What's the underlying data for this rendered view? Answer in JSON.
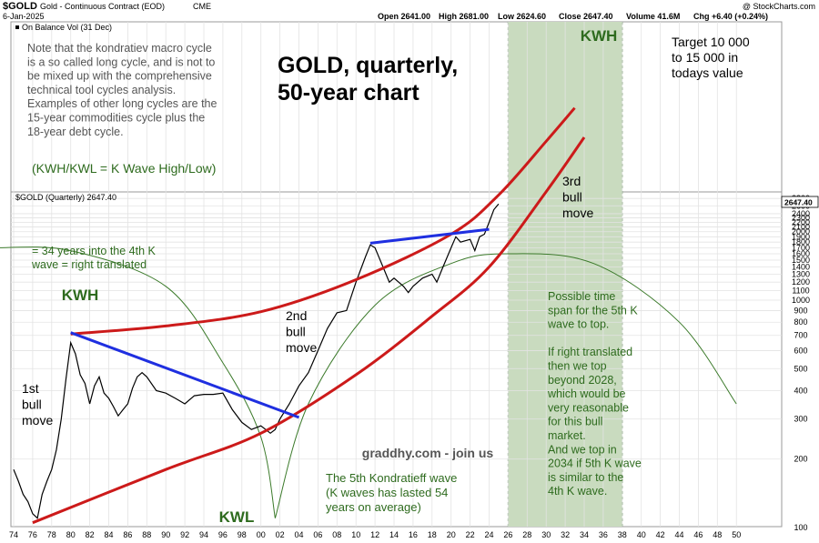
{
  "header": {
    "symbol": "$GOLD",
    "description": "Gold - Continuous Contract (EOD)",
    "exchange": "CME",
    "date": "6-Jan-2025",
    "open": "Open 2641.00",
    "high": "High 2681.00",
    "low": "Low 2624.60",
    "close": "Close 2647.40",
    "volume": "Volume 41.6M",
    "chg": "Chg +6.40 (+0.24%)",
    "watermark": "@ StockCharts.com",
    "indicator_label": "On Balance Vol (31 Dec)",
    "price_label": "$GOLD (Quarterly) 2647.40",
    "last_price_tag": "2647.40"
  },
  "annotations": {
    "note": [
      "Note that the kondratiev macro cycle",
      "is a so called long cycle, and is not to",
      "be mixed up with the comprehensive",
      "technical tool cycles analysis.",
      "Examples of other long cycles are the",
      "15-year commodities cycle plus the",
      "18-year debt cycle."
    ],
    "title": [
      "GOLD, quarterly,",
      "50-year chart"
    ],
    "target": [
      "Target 10 000",
      "to 15 000 in",
      "todays value"
    ],
    "legend_kwh": "(KWH/KWL = K Wave High/Low)",
    "kwh_top": "KWH",
    "kwh_left": "KWH",
    "kwl": "KWL",
    "years_into": [
      "= 34 years into the 4th K",
      "wave = right translated"
    ],
    "bull1": [
      "1st",
      "bull",
      "move"
    ],
    "bull2": [
      "2nd",
      "bull",
      "move"
    ],
    "bull3": [
      "3rd",
      "bull",
      "move"
    ],
    "time_span": [
      "Possible time",
      "span for the 5th K",
      "wave to top.",
      "",
      "If right translated",
      "then we top",
      "beyond 2028,",
      "which would be",
      "very reasonable",
      "for this bull",
      "market.",
      "And we top in",
      "2034 if 5th K wave",
      "is similar to the",
      "4th K wave."
    ],
    "graddhy": "graddhy.com - join us",
    "fifth_wave": [
      "The 5th Kondratieff wave",
      "(K waves has lasted 54",
      "years on average)"
    ]
  },
  "colors": {
    "curve_red": "#cc1a1a",
    "trendline_blue": "#1f2fe0",
    "cycle_green": "#3b7a2a",
    "zone_fill": "#c9dbbf",
    "text_green": "#2e6b1e",
    "price": "#000000"
  },
  "chart_data": {
    "type": "line",
    "title": "GOLD, quarterly, 50-year chart",
    "scale": "log",
    "ylim": [
      100,
      2800
    ],
    "xlim": [
      "1974",
      "2051"
    ],
    "x_tick_labels": [
      "74",
      "76",
      "78",
      "80",
      "82",
      "84",
      "86",
      "88",
      "90",
      "92",
      "94",
      "96",
      "98",
      "00",
      "02",
      "04",
      "06",
      "08",
      "10",
      "12",
      "14",
      "16",
      "18",
      "20",
      "22",
      "24",
      "26",
      "28",
      "30",
      "32",
      "34",
      "36",
      "38",
      "40",
      "42",
      "44",
      "46",
      "48",
      "50"
    ],
    "y_tick_labels": [
      "2800",
      "2600",
      "2400",
      "2300",
      "2200",
      "2100",
      "2000",
      "1900",
      "1800",
      "1700",
      "1600",
      "1500",
      "1400",
      "1300",
      "1200",
      "1100",
      "1000",
      "900",
      "800",
      "700",
      "600",
      "500",
      "400",
      "300",
      "200",
      "100"
    ],
    "series": [
      {
        "x": [
          1974.0,
          1974.5,
          1975.0,
          1975.5,
          1976.0,
          1976.5,
          1977.0,
          1977.5,
          1978.0,
          1978.5,
          1979.0,
          1979.5,
          1980.0,
          1980.5,
          1981.0,
          1981.5,
          1982.0,
          1982.5,
          1983.0,
          1983.5,
          1984.0,
          1984.5,
          1985.0,
          1985.5,
          1986.0,
          1986.5,
          1987.0,
          1987.5,
          1988.0,
          1989.0,
          1990.0,
          1991.0,
          1992.0,
          1993.0,
          1994.0,
          1995.0,
          1996.0,
          1997.0,
          1998.0,
          1999.0,
          2000.0,
          2001.0,
          2001.5,
          2002.0,
          2003.0,
          2004.0,
          2005.0,
          2006.0,
          2007.0,
          2008.0,
          2009.0,
          2010.0,
          2011.0,
          2011.5,
          2012.0,
          2013.0,
          2013.5,
          2014.0,
          2015.0,
          2015.5,
          2016.0,
          2017.0,
          2018.0,
          2018.5,
          2019.0,
          2020.0,
          2020.5,
          2021.0,
          2022.0,
          2022.5,
          2023.0,
          2023.5,
          2024.0,
          2024.5,
          2025.0
        ],
        "values": [
          180,
          160,
          140,
          130,
          115,
          110,
          140,
          160,
          180,
          220,
          300,
          450,
          650,
          580,
          470,
          430,
          350,
          420,
          460,
          390,
          370,
          340,
          310,
          330,
          350,
          410,
          460,
          480,
          460,
          400,
          390,
          370,
          350,
          380,
          385,
          385,
          390,
          330,
          290,
          270,
          280,
          260,
          270,
          300,
          350,
          420,
          480,
          600,
          750,
          880,
          900,
          1200,
          1550,
          1750,
          1700,
          1350,
          1200,
          1250,
          1150,
          1080,
          1150,
          1250,
          1300,
          1200,
          1350,
          1700,
          1900,
          1800,
          1850,
          1650,
          1900,
          1950,
          2200,
          2500,
          2647
        ]
      }
    ],
    "overlays": {
      "red_curve_lower": {
        "x": [
          1976,
          1990,
          2000,
          2010,
          2018,
          2024,
          2030,
          2034
        ],
        "values": [
          105,
          180,
          260,
          470,
          850,
          1400,
          3000,
          5200
        ]
      },
      "red_curve_upper": {
        "x": [
          1980,
          1990,
          2000,
          2010,
          2020,
          2025,
          2030,
          2033
        ],
        "values": [
          710,
          770,
          890,
          1230,
          1950,
          2900,
          5000,
          7000
        ]
      },
      "blue_trend_1": {
        "x": [
          1980,
          2004
        ],
        "values": [
          720,
          305
        ]
      },
      "blue_trend_2": {
        "x": [
          2011.5,
          2024
        ],
        "values": [
          1780,
          2050
        ]
      },
      "green_cycle_1": {
        "x": [
          1972,
          1980,
          1990,
          1996,
          2000,
          2001.5
        ],
        "values": [
          1700,
          1650,
          1150,
          530,
          250,
          110
        ]
      },
      "green_cycle_2": {
        "x": [
          2001.5,
          2005,
          2012,
          2020,
          2026,
          2035,
          2044,
          2050
        ],
        "values": [
          110,
          350,
          950,
          1450,
          1600,
          1450,
          800,
          350
        ]
      }
    },
    "highlight_zone": {
      "x_start": "2026",
      "x_end": "2038"
    }
  }
}
